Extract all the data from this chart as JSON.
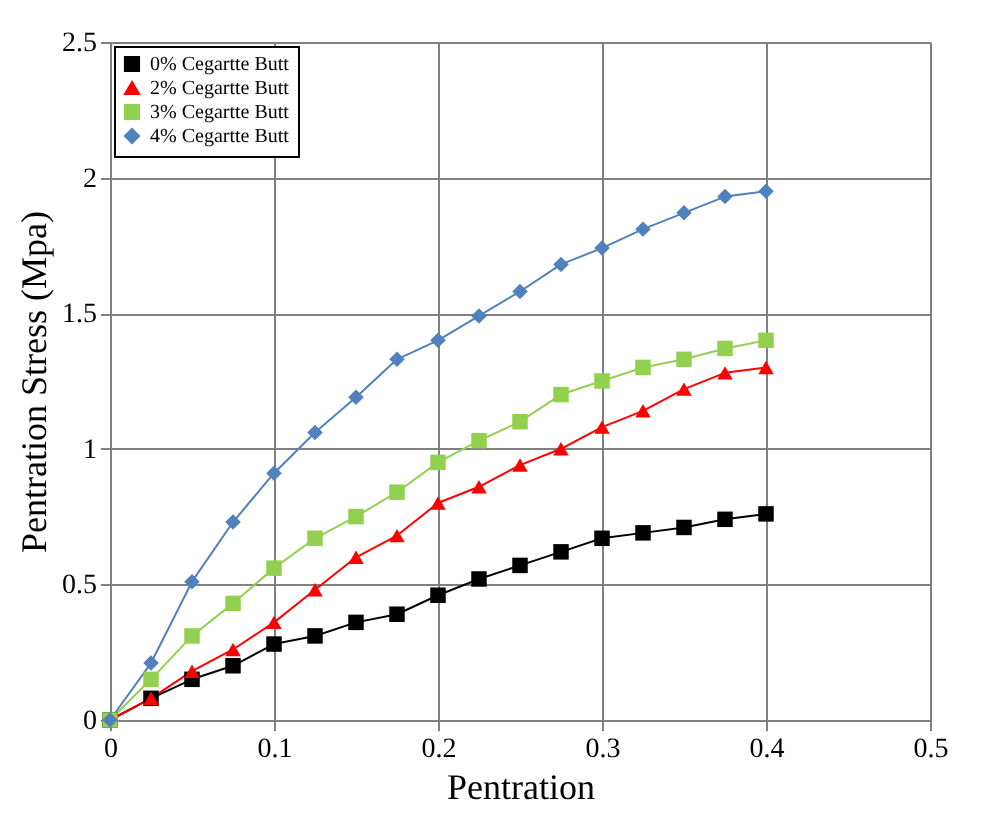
{
  "chart_data": {
    "type": "line",
    "xlabel": "Pentration",
    "ylabel": "Pentration Stress (Mpa)",
    "x": [
      0,
      0.025,
      0.05,
      0.075,
      0.1,
      0.125,
      0.15,
      0.175,
      0.2,
      0.225,
      0.25,
      0.275,
      0.3,
      0.325,
      0.35,
      0.375,
      0.4
    ],
    "series": [
      {
        "name": "0% Cegartte Butt",
        "color": "#000000",
        "marker": "square",
        "values": [
          0,
          0.08,
          0.15,
          0.2,
          0.28,
          0.31,
          0.36,
          0.39,
          0.46,
          0.52,
          0.57,
          0.62,
          0.67,
          0.69,
          0.71,
          0.74,
          0.76
        ]
      },
      {
        "name": "2% Cegartte Butt",
        "color": "#ff0000",
        "marker": "triangle",
        "values": [
          0,
          0.08,
          0.18,
          0.26,
          0.36,
          0.48,
          0.6,
          0.68,
          0.8,
          0.86,
          0.94,
          1.0,
          1.08,
          1.14,
          1.22,
          1.28,
          1.3
        ]
      },
      {
        "name": "3% Cegartte Butt",
        "color": "#92d050",
        "marker": "square",
        "values": [
          0,
          0.15,
          0.31,
          0.43,
          0.56,
          0.67,
          0.75,
          0.84,
          0.95,
          1.03,
          1.1,
          1.2,
          1.25,
          1.3,
          1.33,
          1.37,
          1.4
        ]
      },
      {
        "name": "4% Cegartte Butt",
        "color": "#4f81bd",
        "marker": "diamond",
        "values": [
          0,
          0.21,
          0.51,
          0.73,
          0.91,
          1.06,
          1.19,
          1.33,
          1.4,
          1.49,
          1.58,
          1.68,
          1.74,
          1.81,
          1.87,
          1.93,
          1.95
        ]
      }
    ],
    "xlim": [
      0,
      0.5
    ],
    "xticks": [
      0,
      0.1,
      0.2,
      0.3,
      0.4,
      0.5
    ],
    "ylim": [
      0,
      2.5
    ],
    "yticks": [
      0,
      0.5,
      1,
      1.5,
      2,
      2.5
    ],
    "grid": true,
    "legend": "top left",
    "line_style": "solid"
  }
}
